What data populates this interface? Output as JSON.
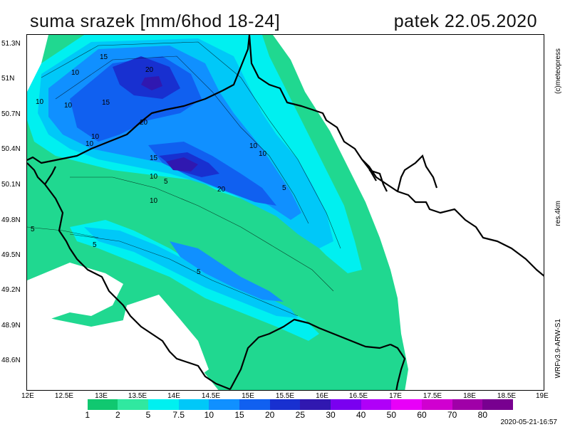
{
  "title": "suma srazek [mm/6hod 18-24]",
  "date": "patek 22.05.2020",
  "copyright": "(c)meteopress",
  "resolution": "res.4km",
  "model": "WRFv3.9-ARW-S1",
  "timestamp": "2020-05-21-16:57",
  "y_labels": [
    "51.3N",
    "51N",
    "50.7N",
    "50.4N",
    "50.1N",
    "49.8N",
    "49.5N",
    "49.2N",
    "48.9N",
    "48.6N"
  ],
  "x_labels": [
    "12E",
    "12.5E",
    "13E",
    "13.5E",
    "14E",
    "14.5E",
    "15E",
    "15.5E",
    "16E",
    "16.5E",
    "17E",
    "17.5E",
    "18E",
    "18.5E",
    "19E"
  ],
  "legend": {
    "labels": [
      "1",
      "2",
      "5",
      "7.5",
      "10",
      "15",
      "20",
      "25",
      "30",
      "40",
      "50",
      "60",
      "70",
      "80"
    ],
    "colors": [
      "#ffffff",
      "#10c870",
      "#30e8a0",
      "#00f0f0",
      "#00c8f8",
      "#1090ff",
      "#1060f0",
      "#1830d0",
      "#3018b0",
      "#7a00f0",
      "#b000f8",
      "#e800f8",
      "#d000d0",
      "#a000a8",
      "#780090"
    ]
  },
  "contour_labels": [
    "15",
    "20",
    "10",
    "10",
    "10",
    "15",
    "20",
    "10",
    "10",
    "15",
    "10",
    "5",
    "10",
    "20",
    "5",
    "10",
    "10",
    "5",
    "5",
    "5"
  ],
  "colors": {
    "light_green": "#20d890",
    "aqua": "#00f0f0",
    "sky": "#00c8f8",
    "blue": "#1090ff",
    "deep_blue": "#1060f0",
    "navy": "#1830d0",
    "violet": "#3018b0"
  }
}
